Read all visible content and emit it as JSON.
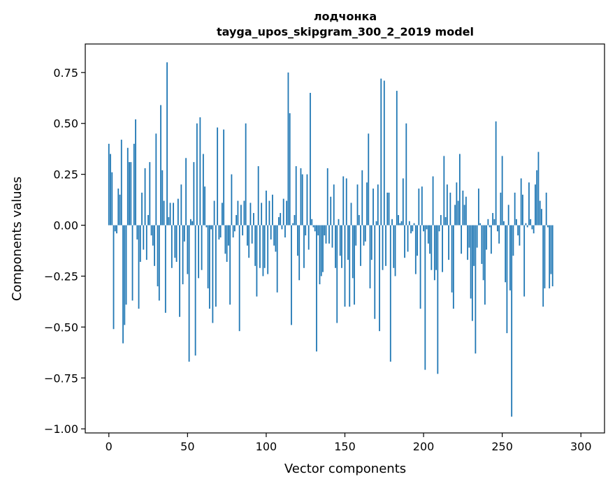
{
  "chart_data": {
    "type": "bar",
    "title_line1": "лодчонка",
    "title_line2": "tayga_upos_skipgram_300_2_2019 model",
    "xlabel": "Vector components",
    "ylabel": "Components values",
    "xlim": [
      -15,
      315
    ],
    "ylim": [
      -1.02,
      0.89
    ],
    "xticks": [
      0,
      50,
      100,
      150,
      200,
      250,
      300
    ],
    "xtick_labels": [
      "0",
      "50",
      "100",
      "150",
      "200",
      "250",
      "300"
    ],
    "yticks": [
      -1.0,
      -0.75,
      -0.5,
      -0.25,
      0.0,
      0.25,
      0.5,
      0.75
    ],
    "ytick_labels": [
      "−1.00",
      "−0.75",
      "−0.50",
      "−0.25",
      "0.00",
      "0.25",
      "0.50",
      "0.75"
    ],
    "grid": false,
    "bar_color": "#1f77b4",
    "values": [
      0.4,
      0.35,
      0.26,
      -0.51,
      -0.03,
      -0.04,
      0.18,
      0.15,
      0.42,
      -0.58,
      -0.49,
      -0.39,
      0.38,
      0.31,
      0.31,
      -0.37,
      0.4,
      0.52,
      -0.07,
      -0.41,
      -0.18,
      0.16,
      -0.12,
      0.28,
      -0.17,
      0.05,
      0.31,
      -0.05,
      -0.1,
      -0.2,
      0.45,
      -0.3,
      -0.37,
      0.59,
      0.27,
      0.12,
      -0.43,
      0.8,
      0.04,
      0.11,
      -0.21,
      0.11,
      -0.16,
      -0.18,
      0.13,
      -0.45,
      0.2,
      -0.29,
      -0.08,
      0.33,
      -0.24,
      -0.67,
      0.03,
      0.02,
      0.31,
      -0.64,
      0.5,
      -0.26,
      0.53,
      -0.22,
      0.35,
      0.19,
      -0.01,
      -0.31,
      -0.41,
      -0.02,
      -0.48,
      0.12,
      -0.4,
      0.48,
      -0.07,
      -0.06,
      0.11,
      0.47,
      -0.14,
      -0.18,
      -0.1,
      -0.39,
      0.25,
      -0.06,
      -0.03,
      0.05,
      0.12,
      -0.52,
      0.1,
      -0.05,
      0.12,
      0.5,
      -0.1,
      -0.16,
      0.11,
      -0.09,
      0.06,
      -0.2,
      -0.35,
      0.29,
      -0.21,
      0.11,
      -0.25,
      -0.21,
      0.17,
      -0.24,
      0.12,
      -0.07,
      0.15,
      -0.1,
      -0.13,
      -0.33,
      0.04,
      0.06,
      -0.02,
      0.13,
      -0.06,
      0.12,
      0.75,
      0.55,
      -0.49,
      0.01,
      0.05,
      0.29,
      -0.15,
      -0.27,
      0.28,
      0.25,
      -0.21,
      -0.05,
      0.25,
      -0.12,
      0.65,
      0.03,
      -0.01,
      -0.03,
      -0.62,
      -0.05,
      -0.29,
      -0.25,
      -0.23,
      -0.05,
      -0.09,
      0.28,
      -0.09,
      0.14,
      -0.11,
      0.2,
      -0.21,
      -0.48,
      0.03,
      -0.15,
      -0.21,
      0.24,
      -0.4,
      0.23,
      -0.17,
      -0.4,
      0.11,
      -0.26,
      -0.39,
      -0.1,
      0.2,
      0.05,
      -0.2,
      0.27,
      -0.1,
      -0.08,
      0.21,
      0.45,
      -0.31,
      -0.17,
      0.18,
      -0.46,
      0.02,
      0.2,
      -0.52,
      0.72,
      -0.22,
      0.71,
      -0.2,
      0.16,
      0.16,
      -0.67,
      0.03,
      -0.21,
      -0.25,
      0.66,
      0.05,
      0.01,
      0.02,
      0.23,
      -0.16,
      0.5,
      -0.13,
      0.02,
      -0.04,
      -0.03,
      0.01,
      -0.24,
      -0.15,
      0.18,
      -0.41,
      0.19,
      -0.03,
      -0.71,
      -0.02,
      -0.09,
      -0.14,
      -0.22,
      0.24,
      -0.27,
      -0.22,
      -0.73,
      -0.03,
      0.05,
      -0.23,
      0.34,
      0.04,
      0.2,
      -0.17,
      0.16,
      -0.33,
      -0.41,
      0.1,
      0.21,
      0.12,
      0.35,
      -0.14,
      0.17,
      0.1,
      0.14,
      -0.17,
      -0.11,
      -0.36,
      -0.47,
      -0.2,
      -0.63,
      -0.11,
      0.18,
      0.01,
      -0.19,
      -0.27,
      -0.39,
      -0.12,
      0.03,
      -0.01,
      -0.14,
      0.06,
      0.03,
      0.51,
      -0.03,
      -0.09,
      0.16,
      0.34,
      0.02,
      -0.28,
      -0.53,
      0.1,
      -0.32,
      -0.94,
      -0.15,
      0.16,
      0.03,
      -0.05,
      -0.1,
      0.23,
      0.15,
      -0.35,
      0.01,
      -0.01,
      0.21,
      0.03,
      -0.02,
      -0.04,
      0.2,
      0.27,
      0.36,
      0.12,
      0.08,
      -0.4,
      -0.31,
      0.16,
      -0.01,
      -0.31,
      -0.24,
      -0.3
    ]
  }
}
